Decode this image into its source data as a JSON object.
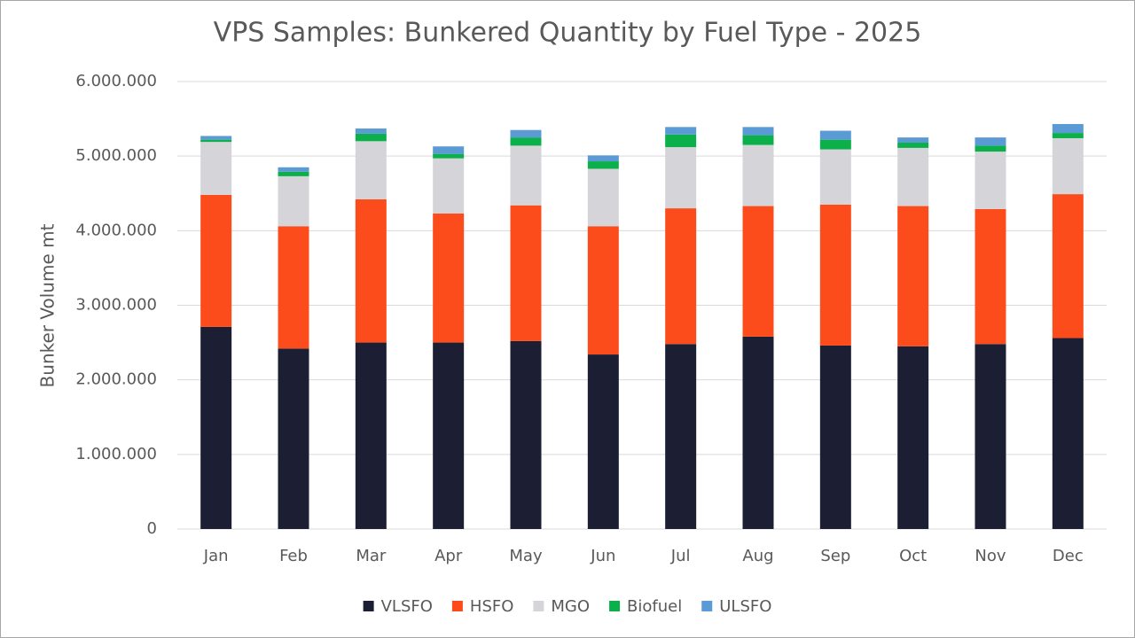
{
  "chart_data": {
    "type": "stacked_bar",
    "title": "VPS Samples: Bunkered Quantity by Fuel Type - 2025",
    "y_label": "Bunker Volume mt",
    "categories": [
      "Jan",
      "Feb",
      "Mar",
      "Apr",
      "May",
      "Jun",
      "Jul",
      "Aug",
      "Sep",
      "Oct",
      "Nov",
      "Dec"
    ],
    "series": [
      {
        "name": "VLSFO",
        "color": "#1c1f33",
        "values": [
          2710000,
          2420000,
          2500000,
          2500000,
          2520000,
          2340000,
          2480000,
          2580000,
          2460000,
          2450000,
          2480000,
          2560000
        ]
      },
      {
        "name": "HSFO",
        "color": "#fc4c1c",
        "values": [
          1770000,
          1640000,
          1920000,
          1730000,
          1820000,
          1720000,
          1820000,
          1750000,
          1890000,
          1880000,
          1810000,
          1930000
        ]
      },
      {
        "name": "MGO",
        "color": "#d5d5d9",
        "values": [
          710000,
          670000,
          780000,
          740000,
          800000,
          770000,
          820000,
          820000,
          740000,
          780000,
          770000,
          750000
        ]
      },
      {
        "name": "Biofuel",
        "color": "#0cb04a",
        "values": [
          30000,
          60000,
          100000,
          60000,
          110000,
          100000,
          170000,
          130000,
          130000,
          70000,
          80000,
          70000
        ]
      },
      {
        "name": "ULSFO",
        "color": "#5b9bd5",
        "values": [
          50000,
          60000,
          70000,
          100000,
          100000,
          80000,
          100000,
          110000,
          120000,
          70000,
          110000,
          120000
        ]
      }
    ],
    "ylim": [
      0,
      6000000
    ],
    "yticks": [
      0,
      {
        "value": 1000000,
        "label": "1.000.000"
      },
      {
        "value": 2000000,
        "label": "2.000.000"
      },
      {
        "value": 3000000,
        "label": "3.000.000"
      },
      {
        "value": 4000000,
        "label": "4.000.000"
      },
      {
        "value": 5000000,
        "label": "5.000.000"
      },
      {
        "value": 6000000,
        "label": "6.000.000"
      }
    ],
    "grid": true,
    "legend": "bottom"
  }
}
